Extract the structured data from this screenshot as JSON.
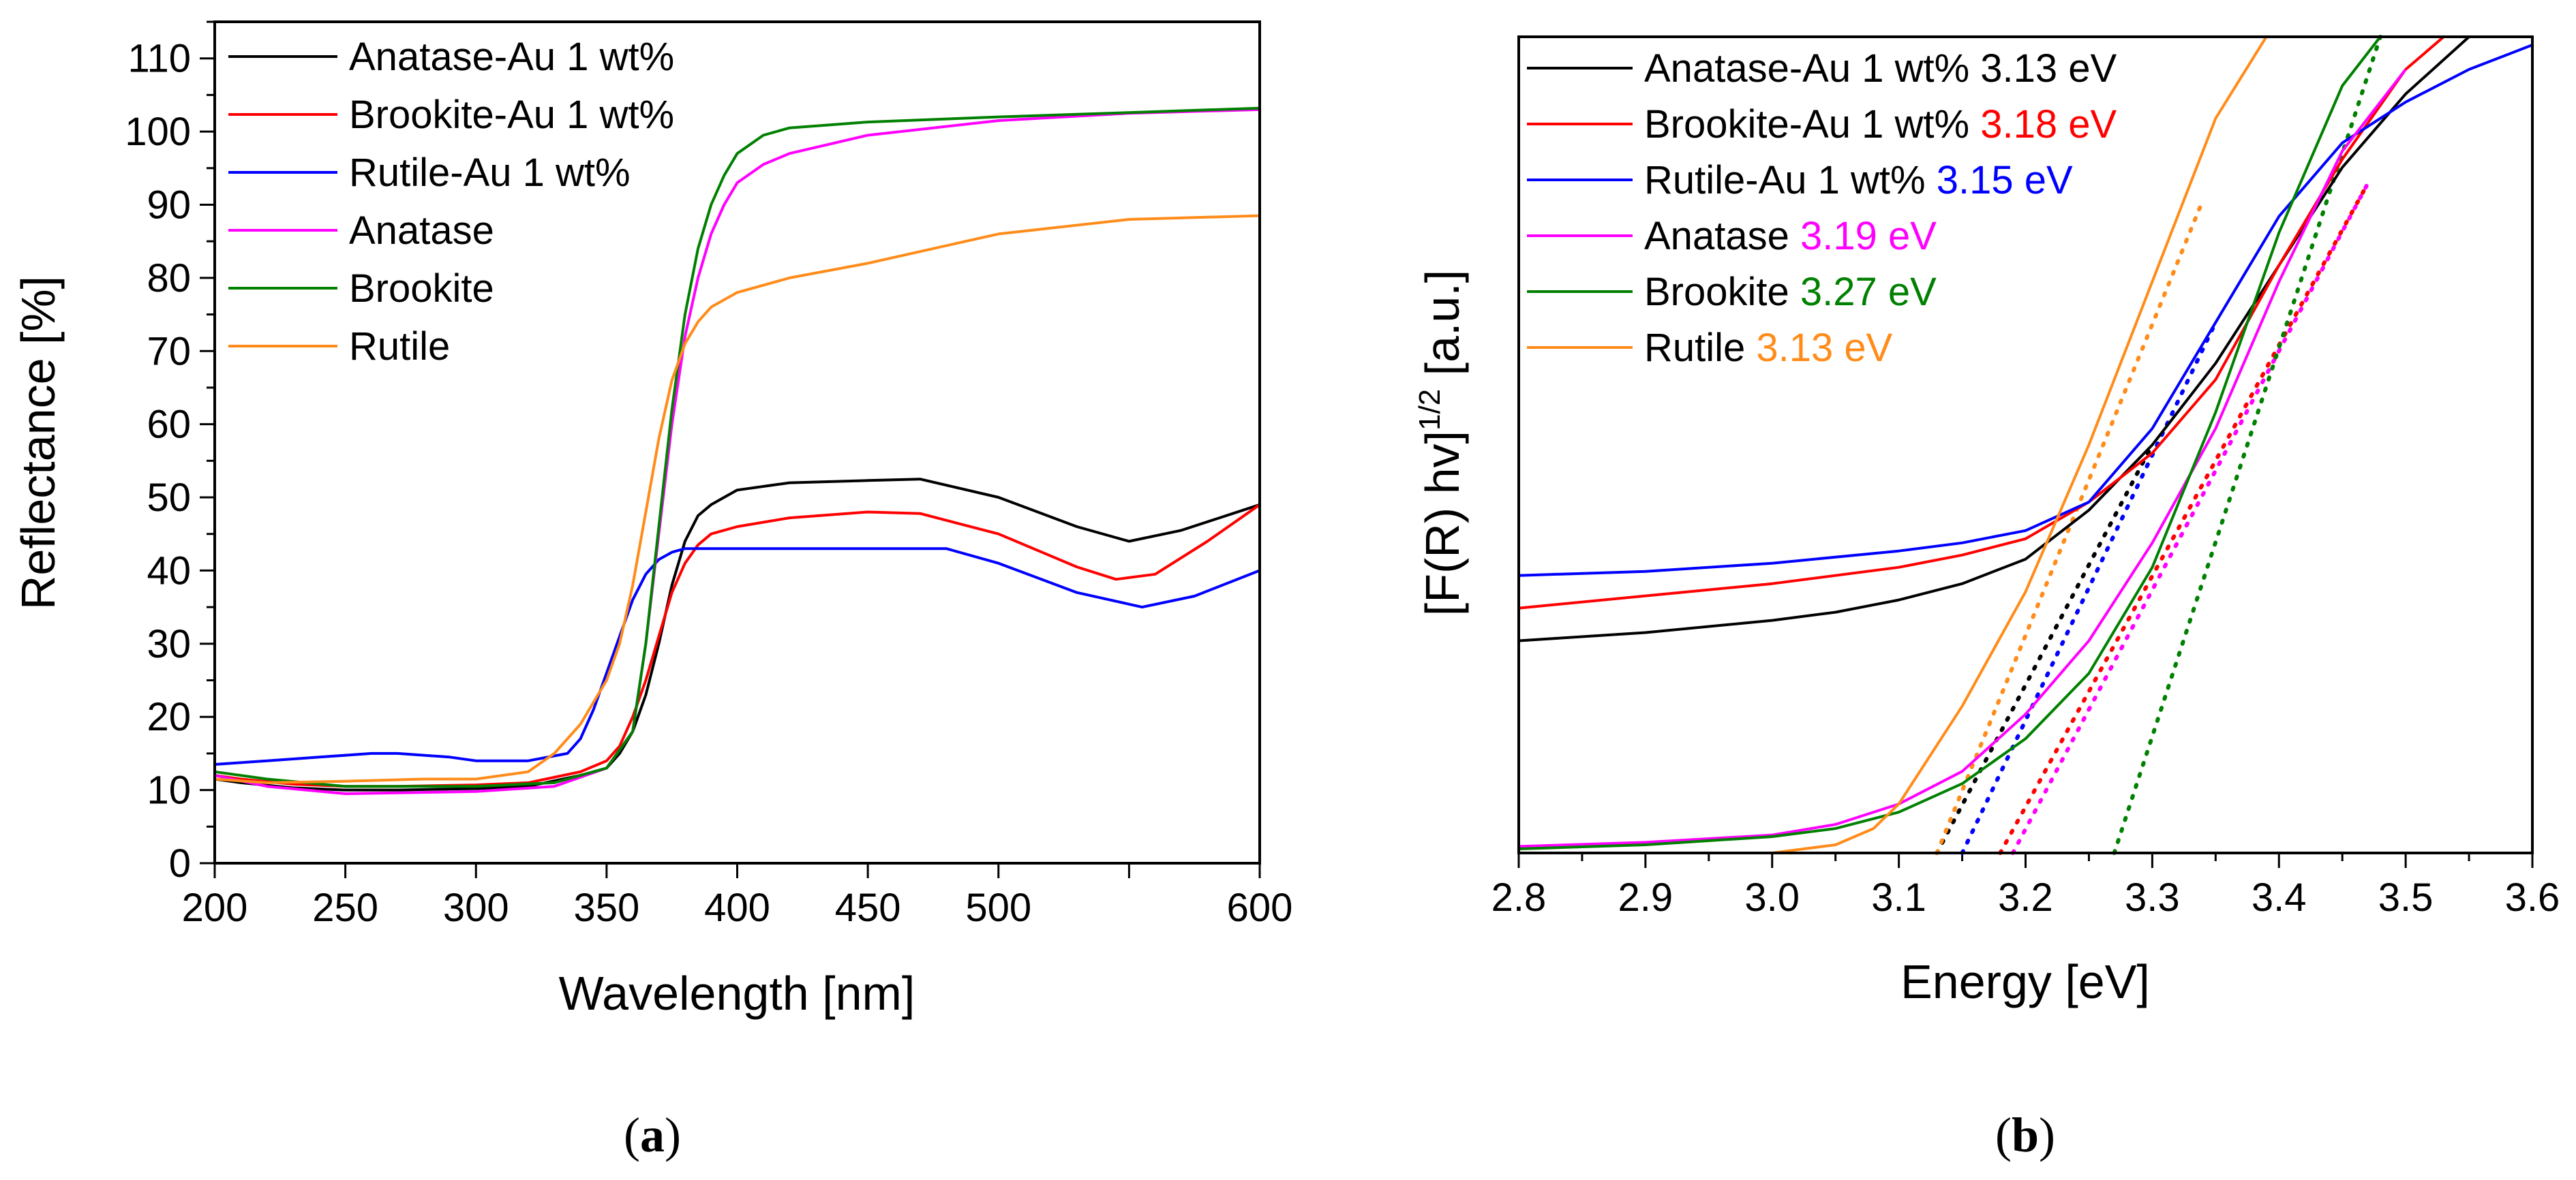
{
  "chart_data": [
    {
      "panel": "a",
      "caption_letter": "a",
      "type": "line",
      "xlabel": "Wavelength [nm]",
      "ylabel": "Reflectance [%]",
      "xlim": [
        200,
        600
      ],
      "ylim": [
        0,
        115
      ],
      "xticks": [
        "200",
        "250",
        "300",
        "350",
        "400",
        "450",
        "500",
        "600"
      ],
      "xticks_all": [
        200,
        250,
        300,
        350,
        400,
        450,
        500,
        550,
        600
      ],
      "yticks": [
        0,
        10,
        20,
        30,
        40,
        50,
        60,
        70,
        80,
        90,
        100,
        110
      ],
      "legend_location": "top-left",
      "series": [
        {
          "name": "Anatase-Au 1 wt%",
          "color": "#000000",
          "x": [
            200,
            210,
            230,
            250,
            270,
            300,
            320,
            340,
            350,
            355,
            360,
            365,
            370,
            375,
            380,
            385,
            390,
            400,
            420,
            450,
            470,
            500,
            530,
            550,
            570,
            600
          ],
          "y": [
            11.5,
            11,
            10.3,
            10,
            10,
            10.2,
            10.5,
            12,
            13,
            15,
            18,
            23,
            30,
            38,
            44,
            47.5,
            49,
            51,
            52,
            52.3,
            52.5,
            50,
            46,
            44,
            45.5,
            49
          ]
        },
        {
          "name": "Brookite-Au 1 wt%",
          "color": "#ff0000",
          "x": [
            200,
            210,
            230,
            250,
            270,
            300,
            320,
            340,
            350,
            355,
            360,
            365,
            370,
            375,
            380,
            385,
            390,
            400,
            420,
            450,
            470,
            500,
            530,
            545,
            560,
            580,
            600
          ],
          "y": [
            12,
            11.5,
            10.8,
            10.5,
            10.5,
            10.7,
            11,
            12.5,
            14,
            16,
            20,
            25,
            31,
            37,
            41,
            43.5,
            45,
            46,
            47.2,
            48,
            47.8,
            45,
            40.5,
            38.8,
            39.5,
            44,
            49
          ]
        },
        {
          "name": "Rutile-Au 1 wt%",
          "color": "#0000ff",
          "x": [
            200,
            220,
            240,
            260,
            270,
            290,
            300,
            320,
            335,
            340,
            345,
            350,
            355,
            360,
            365,
            370,
            375,
            380,
            400,
            450,
            480,
            500,
            530,
            555,
            575,
            600
          ],
          "y": [
            13.5,
            14,
            14.5,
            15,
            15,
            14.5,
            14,
            14,
            15,
            17,
            21,
            26,
            31,
            36,
            39.5,
            41.5,
            42.5,
            43,
            43,
            43,
            43,
            41,
            37,
            35,
            36.5,
            40
          ]
        },
        {
          "name": "Anatase",
          "color": "#ff00ff",
          "x": [
            200,
            220,
            250,
            300,
            330,
            350,
            360,
            365,
            370,
            375,
            380,
            385,
            390,
            395,
            400,
            410,
            420,
            450,
            500,
            550,
            600
          ],
          "y": [
            12,
            10.5,
            9.5,
            9.8,
            10.5,
            13,
            18,
            30,
            45,
            60,
            72,
            80,
            86,
            90,
            93,
            95.5,
            97,
            99.5,
            101.5,
            102.5,
            103
          ]
        },
        {
          "name": "Brookite",
          "color": "#008000",
          "x": [
            200,
            220,
            250,
            300,
            330,
            350,
            360,
            365,
            370,
            375,
            380,
            385,
            390,
            395,
            400,
            410,
            420,
            450,
            500,
            550,
            600
          ],
          "y": [
            12.5,
            11.5,
            10.5,
            10.5,
            11,
            13,
            18,
            30,
            46,
            62,
            75,
            84,
            90,
            94,
            97,
            99.5,
            100.5,
            101.3,
            102,
            102.6,
            103.2
          ]
        },
        {
          "name": "Rutile",
          "color": "#ff8c1a",
          "x": [
            200,
            220,
            250,
            280,
            300,
            320,
            330,
            340,
            350,
            355,
            360,
            365,
            370,
            375,
            380,
            385,
            390,
            400,
            420,
            450,
            500,
            550,
            600
          ],
          "y": [
            11.5,
            11,
            11.2,
            11.5,
            11.5,
            12.5,
            15,
            19,
            25,
            30,
            38,
            48,
            58,
            66,
            71,
            74,
            76,
            78,
            80,
            82,
            86,
            88,
            88.5
          ]
        }
      ]
    },
    {
      "panel": "b",
      "caption_letter": "b",
      "type": "line",
      "xlabel": "Energy [eV]",
      "ylabel_main": "[F(R) hv]",
      "ylabel_sup": "1/2",
      "ylabel_unit": "[a.u.]",
      "xlim": [
        2.8,
        3.6
      ],
      "ylim": [
        0,
        100
      ],
      "xticks": [
        "2.8",
        "2.9",
        "3.0",
        "3.1",
        "3.2",
        "3.3",
        "3.4",
        "3.5",
        "3.6"
      ],
      "xticks_all": [
        2.8,
        2.85,
        2.9,
        2.95,
        3.0,
        3.05,
        3.1,
        3.15,
        3.2,
        3.25,
        3.3,
        3.35,
        3.4,
        3.45,
        3.5,
        3.55,
        3.6
      ],
      "legend_location": "top-left",
      "series": [
        {
          "name": "Anatase-Au 1 wt%",
          "band_gap": "3.13 eV",
          "color": "#000000",
          "x": [
            2.8,
            2.9,
            3.0,
            3.05,
            3.1,
            3.15,
            3.2,
            3.25,
            3.3,
            3.35,
            3.4,
            3.45,
            3.5,
            3.55
          ],
          "y": [
            26,
            27,
            28.5,
            29.5,
            31,
            33,
            36,
            42,
            50,
            60,
            72,
            84,
            93,
            100
          ],
          "fit_x": [
            3.13,
            3.3
          ],
          "fit_y": [
            0,
            50
          ]
        },
        {
          "name": "Brookite-Au 1 wt%",
          "band_gap": "3.18 eV",
          "color": "#ff0000",
          "x": [
            2.8,
            2.9,
            3.0,
            3.1,
            3.15,
            3.2,
            3.25,
            3.3,
            3.35,
            3.4,
            3.45,
            3.5,
            3.53
          ],
          "y": [
            30,
            31.5,
            33,
            35,
            36.5,
            38.5,
            43,
            49,
            58,
            72,
            85,
            96,
            100
          ],
          "fit_x": [
            3.18,
            3.47
          ],
          "fit_y": [
            0,
            82
          ]
        },
        {
          "name": "Rutile-Au 1 wt%",
          "band_gap": "3.15 eV",
          "color": "#0000ff",
          "x": [
            2.8,
            2.9,
            3.0,
            3.1,
            3.15,
            3.2,
            3.25,
            3.3,
            3.35,
            3.4,
            3.45,
            3.5,
            3.55,
            3.6
          ],
          "y": [
            34,
            34.5,
            35.5,
            37,
            38,
            39.5,
            43,
            52,
            65,
            78,
            87,
            92,
            96,
            99
          ],
          "fit_x": [
            3.15,
            3.35
          ],
          "fit_y": [
            0,
            65
          ]
        },
        {
          "name": "Anatase",
          "band_gap": "3.19 eV",
          "color": "#ff00ff",
          "x": [
            2.8,
            2.9,
            3.0,
            3.05,
            3.1,
            3.15,
            3.2,
            3.25,
            3.3,
            3.35,
            3.4,
            3.45,
            3.5
          ],
          "y": [
            0.8,
            1.3,
            2.2,
            3.5,
            6,
            10,
            17,
            26,
            38,
            52,
            70,
            86,
            96
          ],
          "fit_x": [
            3.19,
            3.47
          ],
          "fit_y": [
            0,
            82
          ]
        },
        {
          "name": "Brookite",
          "band_gap": "3.27 eV",
          "color": "#008000",
          "x": [
            2.8,
            2.9,
            3.0,
            3.05,
            3.1,
            3.15,
            3.2,
            3.25,
            3.3,
            3.35,
            3.4,
            3.45,
            3.48
          ],
          "y": [
            0.5,
            1,
            2,
            3,
            5,
            8.5,
            14,
            22,
            35,
            54,
            76,
            94,
            100
          ],
          "fit_x": [
            3.27,
            3.48
          ],
          "fit_y": [
            0,
            100
          ]
        },
        {
          "name": "Rutile",
          "band_gap": "3.13 eV",
          "color": "#ff8c1a",
          "x": [
            2.8,
            2.9,
            3.0,
            3.05,
            3.08,
            3.1,
            3.15,
            3.2,
            3.25,
            3.3,
            3.35,
            3.39
          ],
          "y": [
            0,
            0,
            0,
            1,
            3,
            6,
            18,
            32,
            50,
            70,
            90,
            100
          ],
          "fit_x": [
            3.13,
            3.34
          ],
          "fit_y": [
            0,
            80
          ]
        }
      ]
    }
  ]
}
